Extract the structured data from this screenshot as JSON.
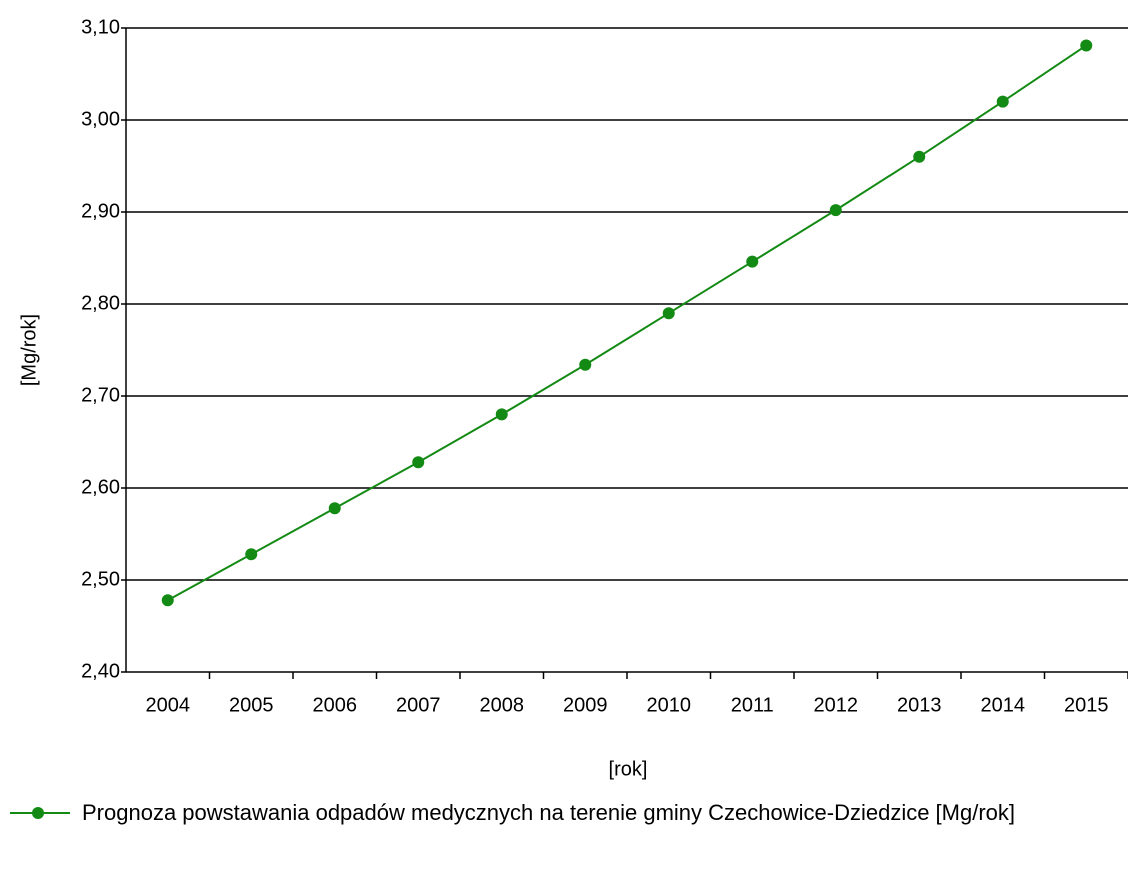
{
  "chart_data": {
    "type": "line",
    "categories": [
      "2004",
      "2005",
      "2006",
      "2007",
      "2008",
      "2009",
      "2010",
      "2011",
      "2012",
      "2013",
      "2014",
      "2015"
    ],
    "series": [
      {
        "name": "Prognoza powstawania odpadów medycznych na terenie gminy Czechowice-Dziedzice [Mg/rok]",
        "color": "#138a13",
        "values": [
          2.478,
          2.528,
          2.578,
          2.628,
          2.68,
          2.734,
          2.79,
          2.846,
          2.902,
          2.96,
          3.02,
          3.081
        ]
      }
    ],
    "ylim": [
      2.4,
      3.1
    ],
    "yticks": [
      {
        "value": 2.4,
        "label": "2,40"
      },
      {
        "value": 2.5,
        "label": "2,50"
      },
      {
        "value": 2.6,
        "label": "2,60"
      },
      {
        "value": 2.7,
        "label": "2,70"
      },
      {
        "value": 2.8,
        "label": "2,80"
      },
      {
        "value": 2.9,
        "label": "2,90"
      },
      {
        "value": 3.0,
        "label": "3,00"
      },
      {
        "value": 3.1,
        "label": "3,10"
      }
    ],
    "ylabel": "[Mg/rok]",
    "xlabel": "[rok]",
    "grid": true,
    "legend": "bottom"
  }
}
